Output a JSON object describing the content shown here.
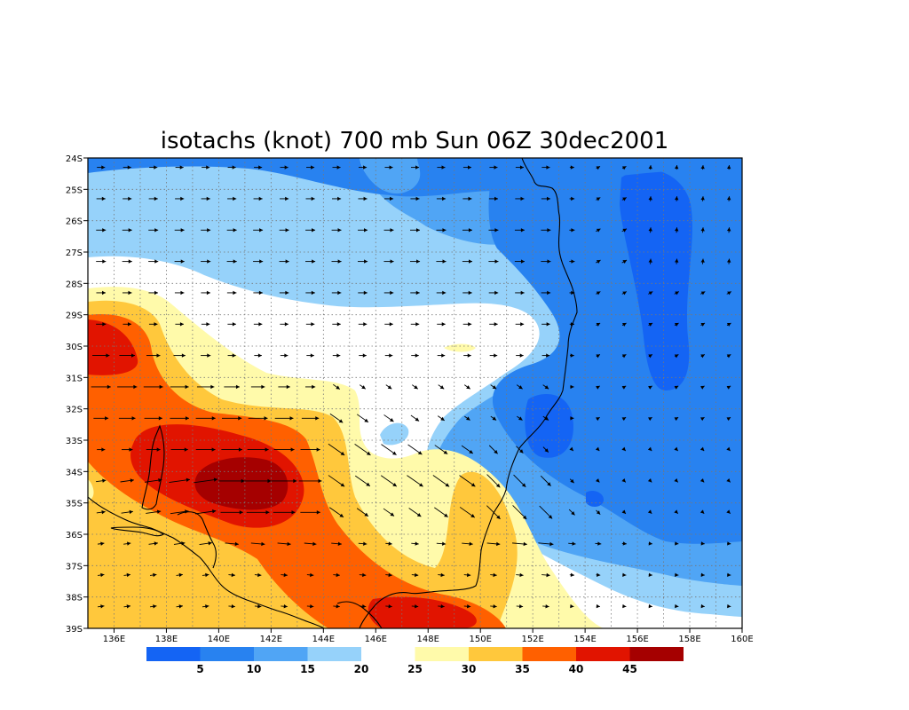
{
  "map": {
    "title": "isotachs (knot) 700 mb Sun 06Z 30dec2001",
    "lat_labels": [
      "24S",
      "25S",
      "26S",
      "27S",
      "28S",
      "29S",
      "30S",
      "31S",
      "32S",
      "33S",
      "34S",
      "35S",
      "36S",
      "37S",
      "38S",
      "39S"
    ],
    "lon_labels": [
      "136E",
      "138E",
      "140E",
      "142E",
      "144E",
      "146E",
      "148E",
      "150E",
      "152E",
      "154E",
      "156E",
      "158E",
      "160E"
    ],
    "extent": {
      "lon": [
        135,
        160
      ],
      "lat": [
        -39,
        -24
      ]
    },
    "grid": true
  },
  "colorbar": {
    "labels": [
      "5",
      "10",
      "15",
      "20",
      "25",
      "30",
      "35",
      "40",
      "45"
    ],
    "colors": [
      "#1464f4",
      "#2882f0",
      "#50a5f5",
      "#96d2fa",
      "#ffffff",
      "#fffaaa",
      "#ffc83c",
      "#ff6000",
      "#e11400",
      "#a50000"
    ]
  },
  "contours": {
    "colors": {
      "c0": "#50a5f5",
      "c1": "#96d2fa",
      "c2": "#ffffff",
      "c3": "#2882f0",
      "c4": "#1464f4",
      "w1": "#fffaaa",
      "w2": "#ffc83c",
      "w3": "#ff6000",
      "w4": "#e11400",
      "w5": "#a50000"
    }
  }
}
